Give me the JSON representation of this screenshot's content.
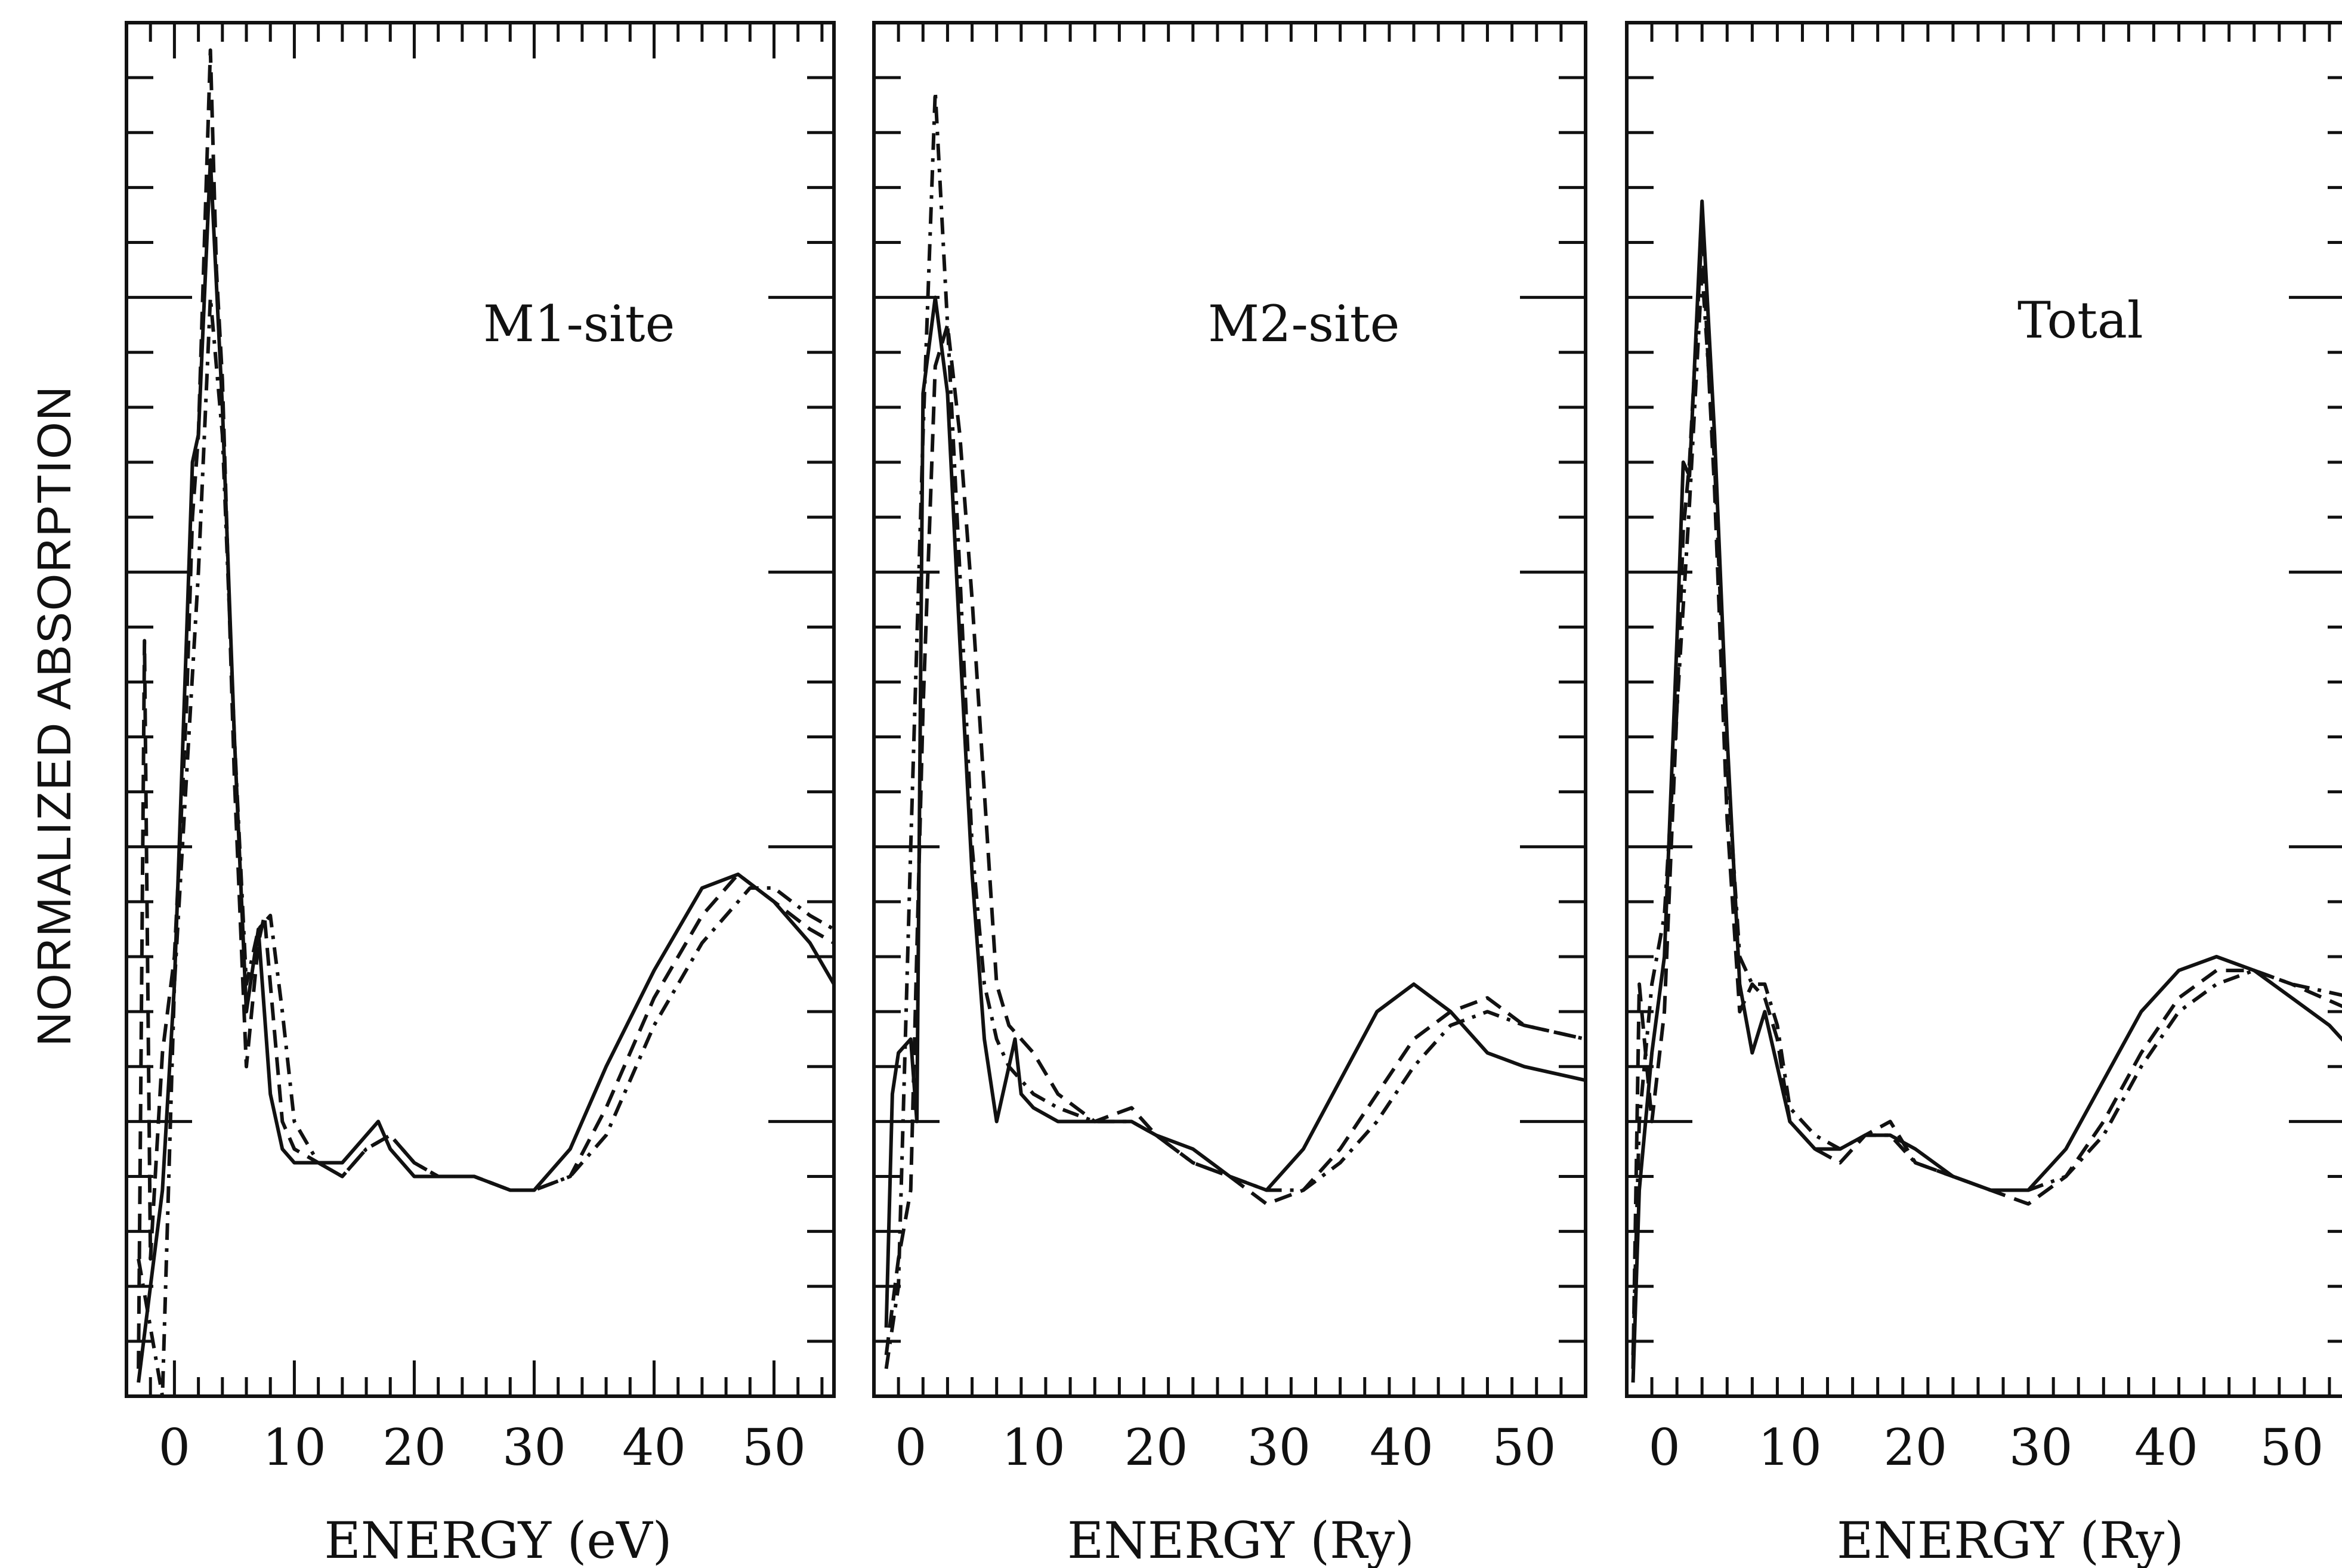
{
  "figure": {
    "ylabel": "NORMALIZED ABSORPTION"
  },
  "chart_data": [
    {
      "type": "line",
      "title": "M1-site",
      "xlabel": "ENERGY (eV)",
      "ylabel": "NORMALIZED ABSORPTION",
      "xlim": [
        -4,
        55
      ],
      "ylim": [
        0,
        1
      ],
      "x_ticks": [
        0,
        10,
        20,
        30,
        40,
        50
      ],
      "grid": false,
      "series": [
        {
          "style": "solid",
          "x": [
            -3,
            -2,
            -1,
            0,
            1,
            1.5,
            2,
            3,
            4,
            5,
            6,
            6.5,
            7,
            8,
            9,
            10,
            12,
            14,
            16,
            17,
            18,
            20,
            22,
            25,
            28,
            30,
            33,
            36,
            40,
            44,
            47,
            50,
            53,
            55
          ],
          "y": [
            0.01,
            0.08,
            0.15,
            0.3,
            0.55,
            0.68,
            0.7,
            0.9,
            0.72,
            0.48,
            0.28,
            0.31,
            0.34,
            0.22,
            0.18,
            0.17,
            0.17,
            0.17,
            0.19,
            0.2,
            0.18,
            0.16,
            0.16,
            0.16,
            0.15,
            0.15,
            0.18,
            0.24,
            0.31,
            0.37,
            0.38,
            0.36,
            0.33,
            0.3
          ]
        },
        {
          "style": "dashed",
          "x": [
            -3,
            -2.5,
            -2,
            -1,
            0,
            1,
            1.5,
            2,
            3,
            3.5,
            4,
            5,
            6,
            7,
            7.5,
            8,
            9,
            10,
            12,
            14,
            16,
            18,
            20,
            22,
            25,
            28,
            30,
            33,
            36,
            40,
            44,
            47,
            50,
            53,
            55
          ],
          "y": [
            0.02,
            0.55,
            0.1,
            0.25,
            0.32,
            0.5,
            0.64,
            0.7,
            0.98,
            0.82,
            0.74,
            0.45,
            0.24,
            0.33,
            0.35,
            0.3,
            0.2,
            0.18,
            0.17,
            0.16,
            0.18,
            0.19,
            0.17,
            0.16,
            0.16,
            0.15,
            0.15,
            0.16,
            0.21,
            0.29,
            0.35,
            0.38,
            0.36,
            0.34,
            0.33
          ]
        },
        {
          "style": "dash-dot",
          "x": [
            -3,
            -2,
            -1,
            0,
            1,
            2,
            3,
            4,
            5,
            6,
            7,
            8,
            9,
            10,
            12,
            14,
            16,
            18,
            20,
            22,
            25,
            28,
            30,
            33,
            36,
            40,
            44,
            48,
            50,
            53,
            55
          ],
          "y": [
            0.1,
            0.05,
            0.0,
            0.3,
            0.45,
            0.6,
            0.8,
            0.7,
            0.48,
            0.3,
            0.34,
            0.35,
            0.28,
            0.2,
            0.17,
            0.16,
            0.18,
            0.19,
            0.17,
            0.16,
            0.16,
            0.15,
            0.15,
            0.16,
            0.19,
            0.27,
            0.33,
            0.37,
            0.37,
            0.35,
            0.34
          ]
        }
      ]
    },
    {
      "type": "line",
      "title": "M2-site",
      "xlabel": "ENERGY (Ry)",
      "ylabel": "NORMALIZED ABSORPTION",
      "xlim": [
        -3,
        55
      ],
      "ylim": [
        0,
        1
      ],
      "x_ticks": [
        0,
        10,
        20,
        30,
        40,
        50
      ],
      "grid": false,
      "series": [
        {
          "style": "solid",
          "x": [
            -2,
            -1.5,
            -1,
            0,
            0.5,
            1,
            2,
            3,
            4,
            5,
            6,
            7,
            8,
            8.5,
            9,
            10,
            12,
            15,
            18,
            20,
            23,
            26,
            29,
            32,
            35,
            38,
            41,
            44,
            47,
            50,
            55
          ],
          "y": [
            0.05,
            0.22,
            0.25,
            0.26,
            0.2,
            0.73,
            0.8,
            0.73,
            0.55,
            0.38,
            0.26,
            0.2,
            0.24,
            0.26,
            0.22,
            0.21,
            0.2,
            0.2,
            0.2,
            0.19,
            0.18,
            0.16,
            0.15,
            0.18,
            0.23,
            0.28,
            0.3,
            0.28,
            0.25,
            0.24,
            0.23
          ]
        },
        {
          "style": "dashed",
          "x": [
            -2,
            -1,
            0,
            1,
            2,
            3,
            4,
            5,
            6,
            7,
            8,
            9,
            10,
            12,
            15,
            18,
            20,
            23,
            26,
            29,
            32,
            35,
            38,
            41,
            44,
            47,
            50,
            55
          ],
          "y": [
            0.03,
            0.1,
            0.15,
            0.5,
            0.75,
            0.78,
            0.7,
            0.58,
            0.44,
            0.3,
            0.27,
            0.26,
            0.25,
            0.22,
            0.2,
            0.21,
            0.19,
            0.17,
            0.16,
            0.14,
            0.15,
            0.18,
            0.22,
            0.26,
            0.28,
            0.29,
            0.27,
            0.26
          ]
        },
        {
          "style": "dash-dot",
          "x": [
            -2,
            -1,
            0,
            1,
            2,
            3,
            4,
            5,
            6,
            7,
            8,
            9,
            10,
            12,
            15,
            18,
            20,
            23,
            26,
            29,
            32,
            35,
            38,
            41,
            44,
            47,
            50,
            55
          ],
          "y": [
            0.02,
            0.08,
            0.4,
            0.7,
            0.95,
            0.78,
            0.6,
            0.4,
            0.3,
            0.26,
            0.24,
            0.23,
            0.22,
            0.21,
            0.2,
            0.2,
            0.19,
            0.17,
            0.16,
            0.15,
            0.15,
            0.17,
            0.2,
            0.24,
            0.27,
            0.28,
            0.27,
            0.26
          ]
        }
      ]
    },
    {
      "type": "line",
      "title": "Total",
      "xlabel": "ENERGY (Ry)",
      "ylabel": "NORMALIZED ABSORPTION",
      "xlim": [
        -3,
        55
      ],
      "ylim": [
        0,
        1
      ],
      "x_ticks": [
        0,
        10,
        20,
        30,
        40,
        50
      ],
      "grid": false,
      "series": [
        {
          "style": "solid",
          "x": [
            -2.5,
            -2,
            -1,
            0,
            1,
            1.5,
            2,
            3,
            4,
            5,
            6,
            7,
            8,
            9,
            10,
            12,
            14,
            16,
            18,
            20,
            23,
            26,
            29,
            32,
            35,
            38,
            41,
            44,
            47,
            50,
            53,
            55
          ],
          "y": [
            0.01,
            0.15,
            0.25,
            0.32,
            0.55,
            0.68,
            0.67,
            0.87,
            0.7,
            0.48,
            0.3,
            0.25,
            0.28,
            0.24,
            0.2,
            0.18,
            0.18,
            0.19,
            0.19,
            0.18,
            0.16,
            0.15,
            0.15,
            0.18,
            0.23,
            0.28,
            0.31,
            0.32,
            0.31,
            0.29,
            0.27,
            0.25
          ]
        },
        {
          "style": "dashed",
          "x": [
            -2.5,
            -2,
            -1,
            0,
            1,
            1.5,
            2,
            3,
            3.5,
            4,
            5,
            6,
            7,
            8,
            9,
            10,
            12,
            14,
            16,
            18,
            20,
            23,
            26,
            29,
            32,
            35,
            38,
            41,
            44,
            47,
            50,
            55
          ],
          "y": [
            0.02,
            0.3,
            0.2,
            0.28,
            0.5,
            0.63,
            0.68,
            0.85,
            0.75,
            0.66,
            0.42,
            0.28,
            0.3,
            0.29,
            0.26,
            0.2,
            0.18,
            0.17,
            0.19,
            0.2,
            0.17,
            0.16,
            0.15,
            0.14,
            0.16,
            0.2,
            0.25,
            0.29,
            0.31,
            0.31,
            0.3,
            0.28
          ]
        },
        {
          "style": "dash-dot",
          "x": [
            -2.5,
            -2,
            -1,
            0,
            1,
            2,
            3,
            4,
            5,
            6,
            7,
            8,
            9,
            10,
            12,
            14,
            16,
            18,
            20,
            23,
            26,
            29,
            32,
            35,
            38,
            41,
            44,
            47,
            50,
            55
          ],
          "y": [
            0.03,
            0.2,
            0.3,
            0.35,
            0.5,
            0.65,
            0.82,
            0.68,
            0.46,
            0.32,
            0.3,
            0.3,
            0.27,
            0.21,
            0.19,
            0.18,
            0.19,
            0.19,
            0.17,
            0.16,
            0.15,
            0.15,
            0.16,
            0.19,
            0.24,
            0.28,
            0.3,
            0.31,
            0.3,
            0.29
          ]
        }
      ]
    }
  ]
}
